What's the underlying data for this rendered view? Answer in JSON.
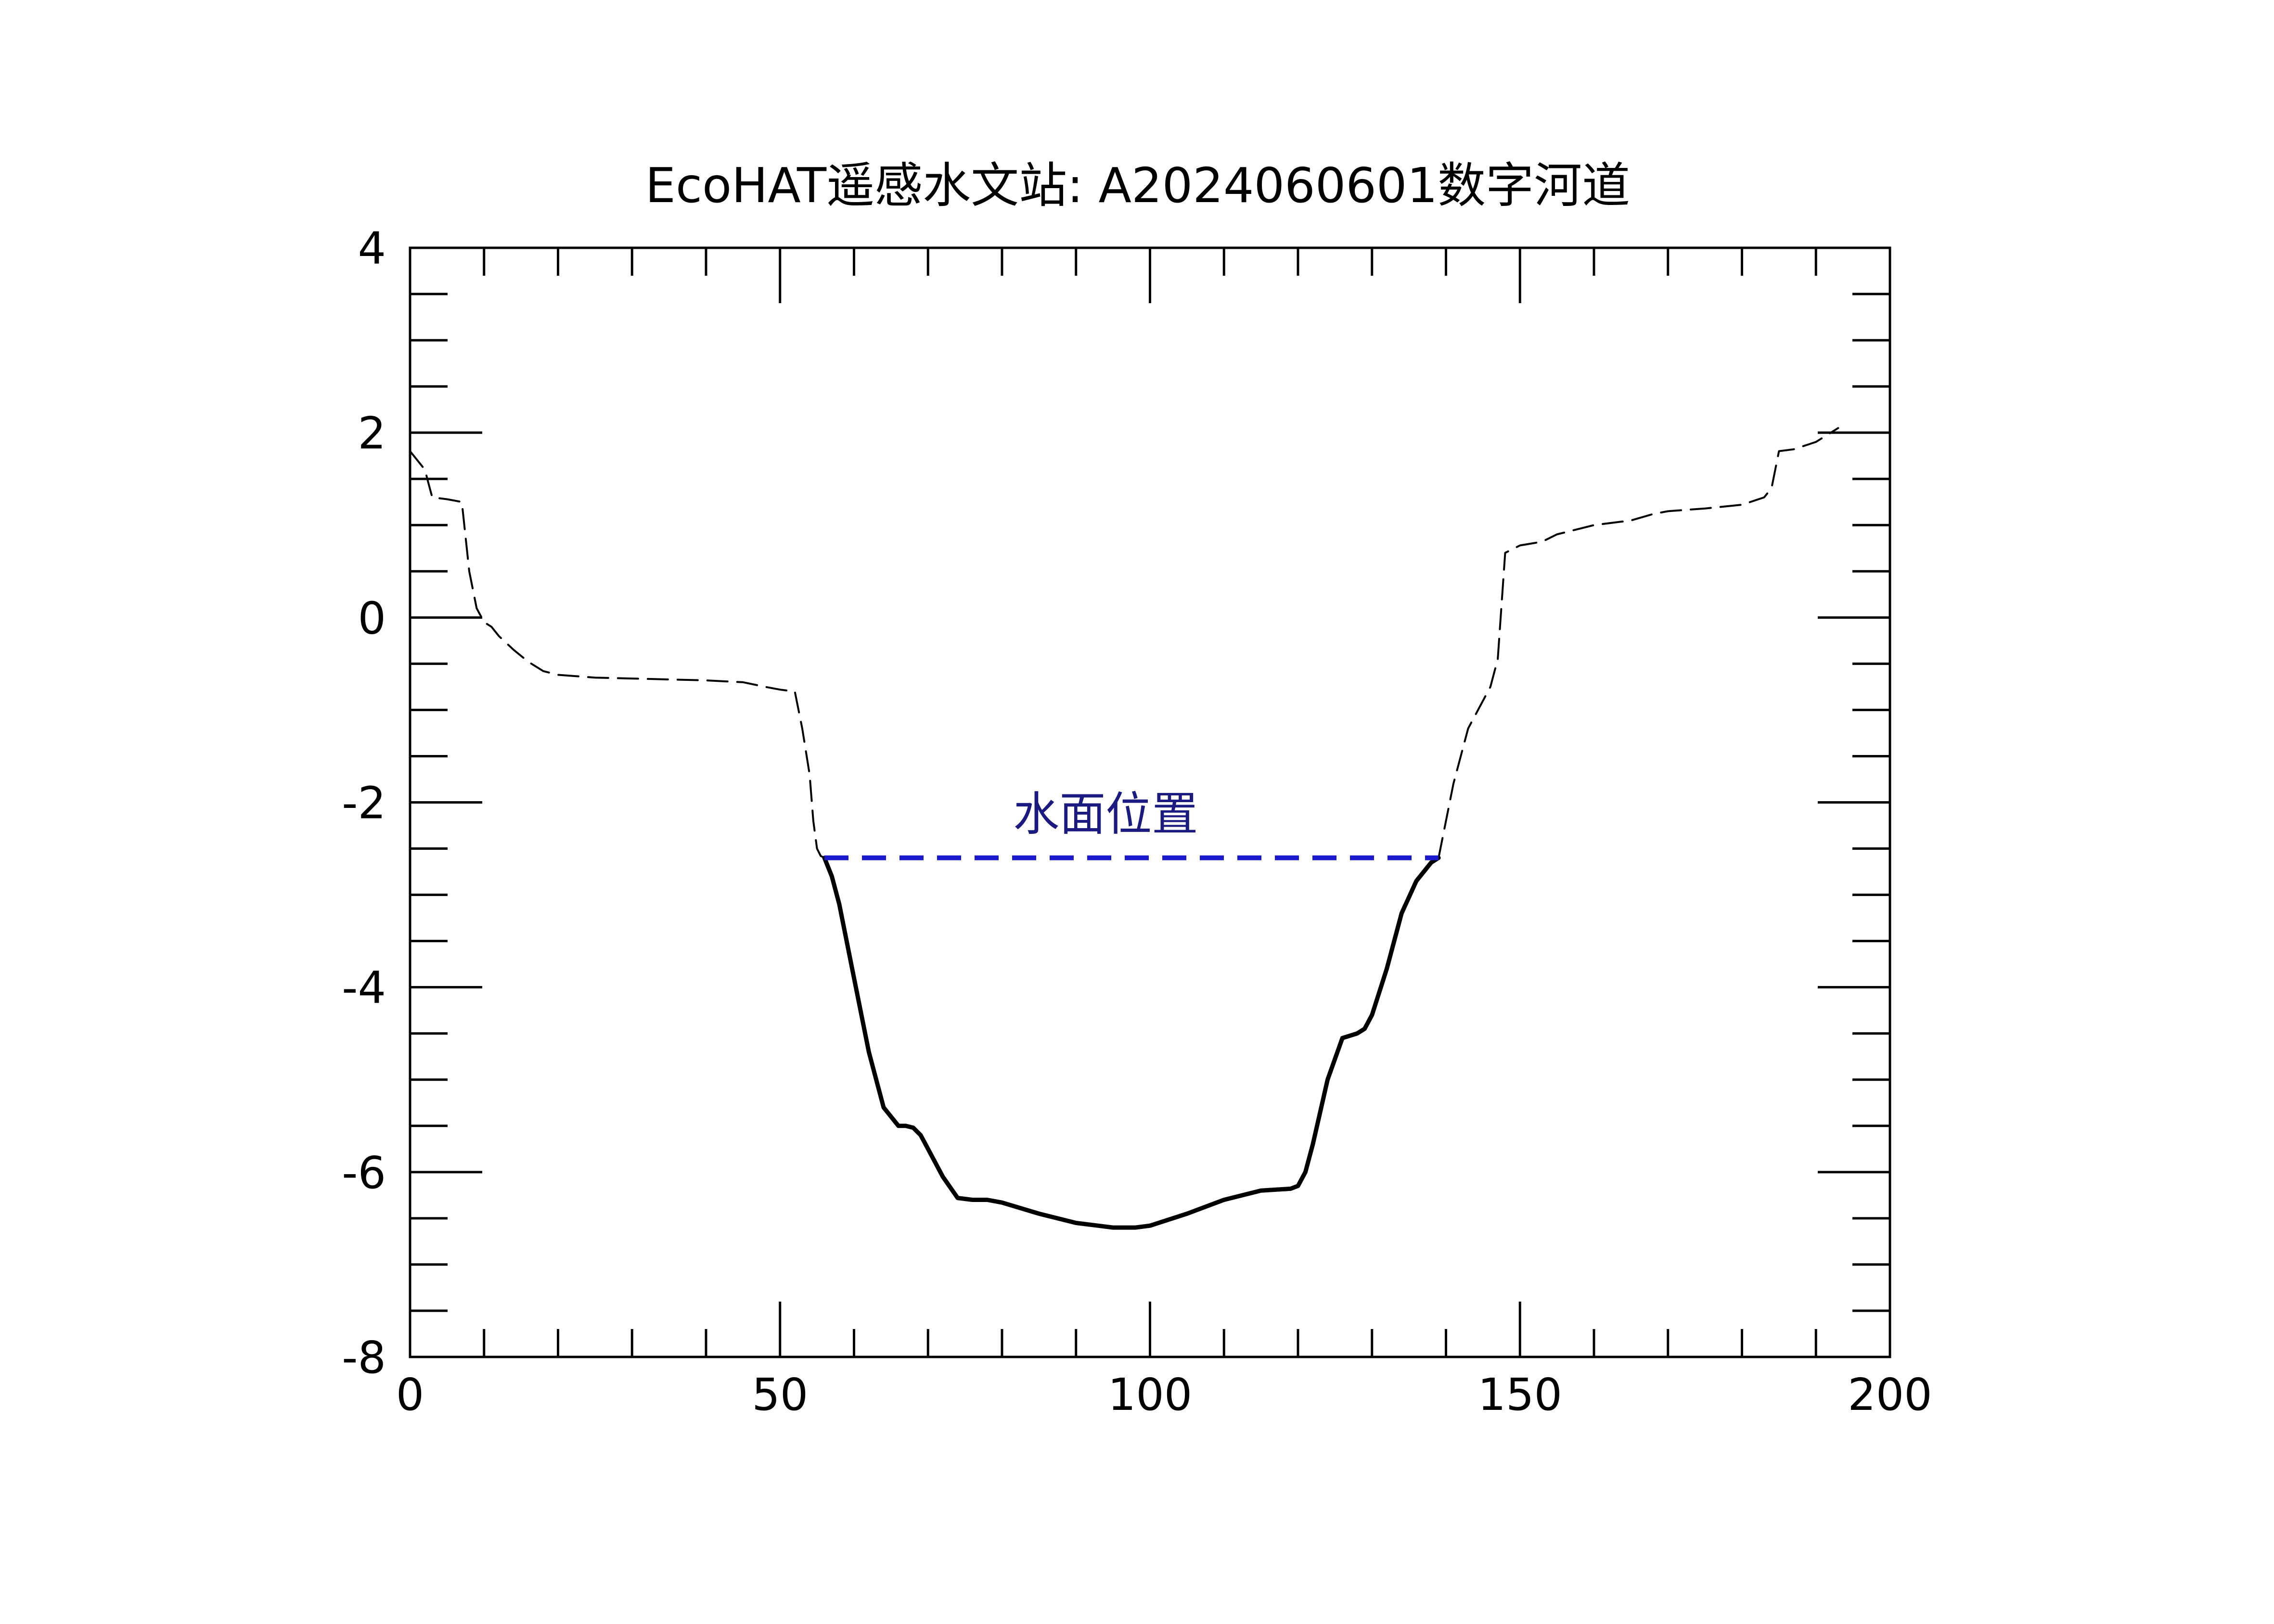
{
  "chart_data": {
    "type": "line",
    "title": "EcoHAT遥感水文站: A2024060601数字河道",
    "xlabel": "",
    "ylabel": "",
    "xlim": [
      0,
      200
    ],
    "ylim": [
      -8,
      4
    ],
    "x_ticks": [
      0,
      50,
      100,
      150,
      200
    ],
    "y_ticks": [
      4,
      2,
      0,
      -2,
      -4,
      -6,
      -8
    ],
    "x_tick_labels": [
      "0",
      "50",
      "100",
      "150",
      "200"
    ],
    "y_tick_labels": [
      "4",
      "2",
      "0",
      "-2",
      "-4",
      "-6",
      "-8"
    ],
    "grid": false,
    "series": [
      {
        "style": "dashed-thin",
        "color": "#000000",
        "x": [
          0,
          1,
          2,
          2.5,
          3,
          5,
          7,
          8,
          9,
          10,
          11,
          12,
          14,
          16,
          18,
          20,
          25,
          30,
          35,
          40,
          45,
          48,
          50,
          52,
          53,
          54,
          54.5,
          55,
          55.5,
          56
        ],
        "y": [
          1.8,
          1.7,
          1.6,
          1.45,
          1.3,
          1.28,
          1.25,
          0.5,
          0.1,
          -0.05,
          -0.1,
          -0.2,
          -0.35,
          -0.48,
          -0.58,
          -0.62,
          -0.65,
          -0.66,
          -0.67,
          -0.68,
          -0.7,
          -0.75,
          -0.78,
          -0.8,
          -1.2,
          -1.7,
          -2.2,
          -2.5,
          -2.58,
          -2.6
        ]
      },
      {
        "style": "solid-thick",
        "color": "#000000",
        "x": [
          56,
          57,
          58,
          60,
          62,
          64,
          66,
          67,
          68,
          69,
          70,
          72,
          74,
          76,
          78,
          80,
          85,
          90,
          95,
          98,
          100,
          105,
          110,
          115,
          119,
          120,
          121,
          122,
          124,
          126,
          128,
          129,
          130,
          132,
          134,
          136,
          138,
          139
        ],
        "y": [
          -2.6,
          -2.8,
          -3.1,
          -3.9,
          -4.7,
          -5.3,
          -5.5,
          -5.5,
          -5.52,
          -5.6,
          -5.75,
          -6.05,
          -6.28,
          -6.3,
          -6.3,
          -6.33,
          -6.45,
          -6.55,
          -6.6,
          -6.6,
          -6.58,
          -6.45,
          -6.3,
          -6.2,
          -6.18,
          -6.15,
          -6.0,
          -5.7,
          -5.0,
          -4.55,
          -4.5,
          -4.45,
          -4.3,
          -3.8,
          -3.2,
          -2.85,
          -2.65,
          -2.6
        ]
      },
      {
        "style": "dashed-thin",
        "color": "#000000",
        "x": [
          139,
          141,
          143,
          145,
          146,
          147,
          148,
          150,
          153,
          155,
          160,
          165,
          168,
          170,
          175,
          180,
          183,
          184,
          185,
          187,
          190,
          193
        ],
        "y": [
          -2.6,
          -1.8,
          -1.2,
          -0.9,
          -0.75,
          -0.45,
          0.7,
          0.78,
          0.82,
          0.9,
          1.0,
          1.05,
          1.12,
          1.15,
          1.18,
          1.22,
          1.3,
          1.4,
          1.8,
          1.82,
          1.9,
          2.05
        ]
      }
    ],
    "annotations": [
      {
        "type": "hline",
        "label": "水面位置",
        "y": -2.6,
        "x_start": 56,
        "x_end": 139,
        "color": "#1a1acc",
        "label_color": "#1a1a80",
        "label_x": 94,
        "label_y": -2.3
      }
    ]
  }
}
